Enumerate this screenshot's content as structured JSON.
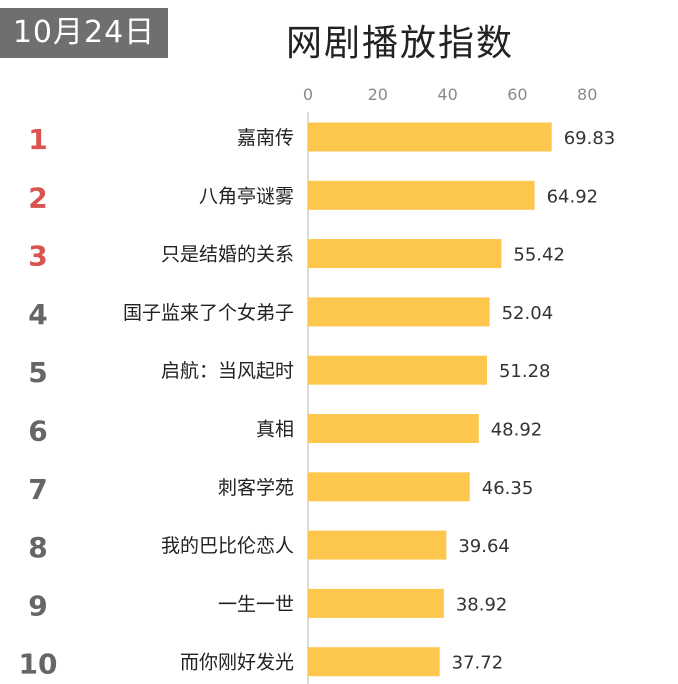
{
  "header": {
    "date": "10月24日",
    "title": "网剧播放指数"
  },
  "colors": {
    "bar": "#FDC74D",
    "rank_top": "#D9534F",
    "rank_other": "#666666",
    "axis": "#CFCFCF",
    "tick_text": "#8A8A8A",
    "label_text": "#222222",
    "value_text": "#333333"
  },
  "chart_data": {
    "type": "bar",
    "orientation": "horizontal",
    "title": "网剧播放指数",
    "xlim": [
      0,
      80
    ],
    "xticks": [
      0,
      20,
      40,
      60,
      80
    ],
    "xaxis_position": "top",
    "grid": false,
    "ranks": [
      1,
      2,
      3,
      4,
      5,
      6,
      7,
      8,
      9,
      10
    ],
    "categories": [
      "嘉南传",
      "八角亭谜雾",
      "只是结婚的关系",
      "国子监来了个女弟子",
      "启航：当风起时",
      "真相",
      "刺客学苑",
      "我的巴比伦恋人",
      "一生一世",
      "而你刚好发光"
    ],
    "values": [
      69.83,
      64.92,
      55.42,
      52.04,
      51.28,
      48.92,
      46.35,
      39.64,
      38.92,
      37.72
    ],
    "value_labels": [
      "69.83",
      "64.92",
      "55.42",
      "52.04",
      "51.28",
      "48.92",
      "46.35",
      "39.64",
      "38.92",
      "37.72"
    ]
  }
}
